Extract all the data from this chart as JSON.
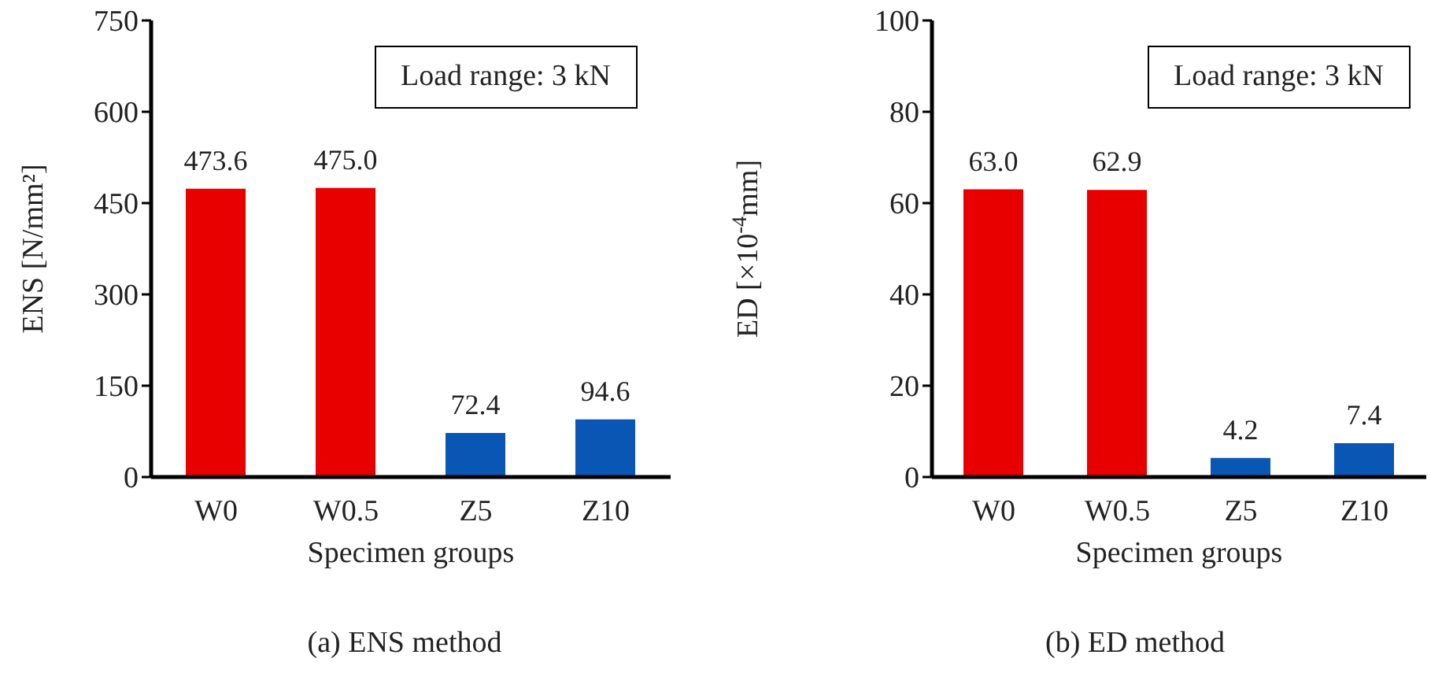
{
  "chart_data": [
    {
      "type": "bar",
      "categories": [
        "W0",
        "W0.5",
        "Z5",
        "Z10"
      ],
      "values": [
        473.6,
        475.0,
        72.4,
        94.6
      ],
      "colors": [
        "#e80000",
        "#e80000",
        "#0a56b4",
        "#0a56b4"
      ],
      "value_labels": [
        "473.6",
        "475.0",
        "72.4",
        "94.6"
      ],
      "xlabel": "Specimen groups",
      "ylabel": "ENS [N/mm²]",
      "ylim": [
        0,
        750
      ],
      "yticks": [
        0,
        150,
        300,
        450,
        600,
        750
      ],
      "grid": false,
      "legend": false,
      "annotations": [
        "Load range: 3 kN",
        "(a) ENS method"
      ]
    },
    {
      "type": "bar",
      "categories": [
        "W0",
        "W0.5",
        "Z5",
        "Z10"
      ],
      "values": [
        63.0,
        62.9,
        4.2,
        7.4
      ],
      "colors": [
        "#e80000",
        "#e80000",
        "#0a56b4",
        "#0a56b4"
      ],
      "value_labels": [
        "63.0",
        "62.9",
        "4.2",
        "7.4"
      ],
      "xlabel": "Specimen groups",
      "ylabel": "ED [×10$^{-4}$mm]",
      "ylim": [
        0,
        100
      ],
      "yticks": [
        0,
        20,
        40,
        60,
        80,
        100
      ],
      "grid": false,
      "legend": false,
      "annotations": [
        "Load range: 3 kN",
        "(b) ED method"
      ]
    }
  ]
}
